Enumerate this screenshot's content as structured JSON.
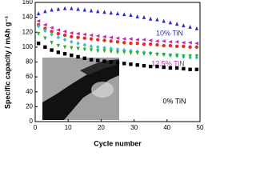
{
  "chart_data": {
    "type": "scatter",
    "x_label": "Cycle number",
    "y_label": "Specific capacity / mAh g⁻¹",
    "x": [
      1,
      3,
      5,
      7,
      9,
      11,
      13,
      15,
      17,
      19,
      21,
      23,
      25,
      27,
      29,
      31,
      33,
      35,
      37,
      39,
      41,
      43,
      45,
      47,
      49
    ],
    "xlim": [
      0,
      50
    ],
    "xticks": [
      0,
      10,
      20,
      30,
      40,
      50
    ],
    "ylim": [
      0,
      160
    ],
    "yticks": [
      0,
      20,
      40,
      60,
      80,
      100,
      120,
      140,
      160
    ],
    "series": [
      {
        "name": "10% TiN",
        "color": "#2a2ad0",
        "marker": "triangle-up",
        "values": [
          145,
          148,
          150,
          151,
          152,
          152,
          151,
          150,
          149,
          148,
          147,
          146,
          145,
          144,
          143,
          141,
          140,
          138,
          137,
          135,
          133,
          131,
          129,
          127,
          125
        ]
      },
      {
        "name": "12.5% TiN",
        "color": "#cc22b4",
        "marker": "triangle-left",
        "values": [
          135,
          130,
          126,
          123,
          121,
          119,
          118,
          117,
          116,
          115,
          114,
          113,
          112,
          111,
          111,
          110,
          110,
          109,
          108,
          108,
          107,
          107,
          106,
          106,
          105
        ]
      },
      {
        "color": "#e03020",
        "marker": "circle",
        "values": [
          130,
          125,
          121,
          118,
          116,
          114,
          113,
          112,
          111,
          110,
          109,
          108,
          107,
          106,
          105,
          105,
          104,
          104,
          103,
          102,
          102,
          101,
          101,
          100,
          100
        ]
      },
      {
        "color": "#3cc0c8",
        "marker": "diamond",
        "values": [
          128,
          122,
          117,
          113,
          110,
          107,
          105,
          103,
          101,
          100,
          99,
          98,
          97,
          96,
          95,
          94,
          93,
          92,
          91,
          90,
          89,
          88,
          87,
          86,
          86
        ]
      },
      {
        "color": "#2cb02c",
        "marker": "triangle-down",
        "values": [
          118,
          112,
          106,
          102,
          100,
          99,
          98,
          97,
          96,
          95,
          95,
          94,
          93,
          93,
          92,
          92,
          91,
          91,
          90,
          90,
          89,
          89,
          88,
          88,
          88
        ]
      },
      {
        "name": "0% TiN",
        "color": "#000000",
        "marker": "square",
        "values": [
          105,
          100,
          96,
          93,
          91,
          89,
          87,
          85,
          83,
          82,
          81,
          80,
          79,
          78,
          77,
          76,
          75,
          74,
          74,
          73,
          72,
          72,
          71,
          70,
          70
        ]
      }
    ]
  }
}
